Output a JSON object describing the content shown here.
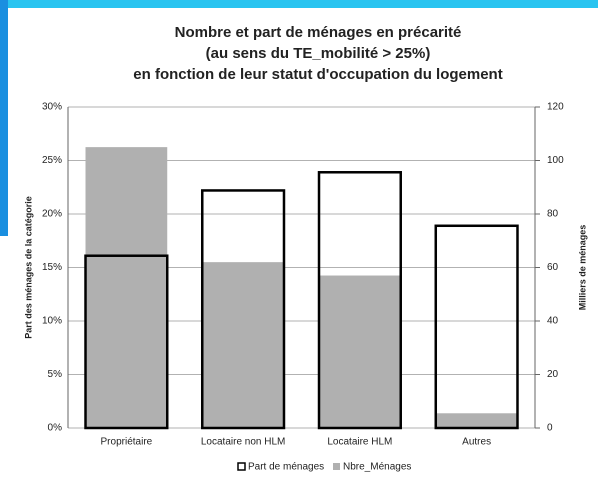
{
  "chart_data": {
    "type": "bar",
    "title": [
      "Nombre et part de ménages en précarité",
      "(au sens du TE_mobilité > 25%)",
      "en fonction de leur statut d'occupation du logement"
    ],
    "y_label": "Part des ménages de la catégorie",
    "y2_label": "Milliers de ménages",
    "categories": [
      "Propriétaire",
      "Locataire non HLM",
      "Locataire HLM",
      "Autres"
    ],
    "series": [
      {
        "name": "Part de ménages",
        "color": "#000000",
        "values": [
          16.1,
          22.2,
          23.9,
          18.9
        ]
      },
      {
        "name": "Nbre_Ménages",
        "color": "#b0b0b0",
        "axis": "y2",
        "values": [
          105,
          62,
          57,
          5.5
        ]
      }
    ],
    "ylim": [
      0,
      30
    ],
    "yticks": [
      {
        "value": 0,
        "label": "0%"
      },
      {
        "value": 5,
        "label": "5%"
      },
      {
        "value": 10,
        "label": "10%"
      },
      {
        "value": 15,
        "label": "15%"
      },
      {
        "value": 20,
        "label": "20%"
      },
      {
        "value": 25,
        "label": "25%"
      },
      {
        "value": 30,
        "label": "30%"
      }
    ],
    "y2lim": [
      0,
      120
    ],
    "y2ticks": [
      0,
      20,
      40,
      60,
      80,
      100,
      120
    ],
    "grid": true,
    "legend": "bottom"
  }
}
